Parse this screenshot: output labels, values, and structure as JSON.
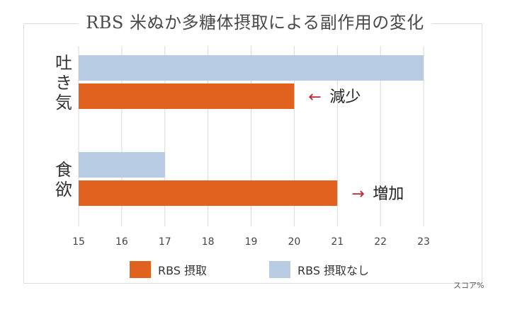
{
  "chart_data": {
    "type": "bar",
    "orientation": "horizontal",
    "title": "RBS 米ぬか多糖体摂取による副作用の変化",
    "categories": [
      "吐き気",
      "食欲"
    ],
    "series": [
      {
        "name": "RBS 摂取なし",
        "color": "#b7cce2",
        "values": [
          23,
          17
        ]
      },
      {
        "name": "RBS 摂取",
        "color": "#e0621e",
        "values": [
          20,
          21
        ]
      }
    ],
    "xlim": [
      15,
      23
    ],
    "xticks": [
      15,
      16,
      17,
      18,
      19,
      20,
      21,
      22,
      23
    ],
    "grid": true,
    "legend_position": "bottom",
    "unit_label": "スコア%",
    "annotations": [
      {
        "category": "吐き気",
        "arrow": "←",
        "text": "減少"
      },
      {
        "category": "食欲",
        "arrow": "→",
        "text": "増加"
      }
    ]
  },
  "legend": [
    {
      "label": "RBS 摂取",
      "color": "#e0621e"
    },
    {
      "label": "RBS 摂取なし",
      "color": "#b7cce2"
    }
  ]
}
